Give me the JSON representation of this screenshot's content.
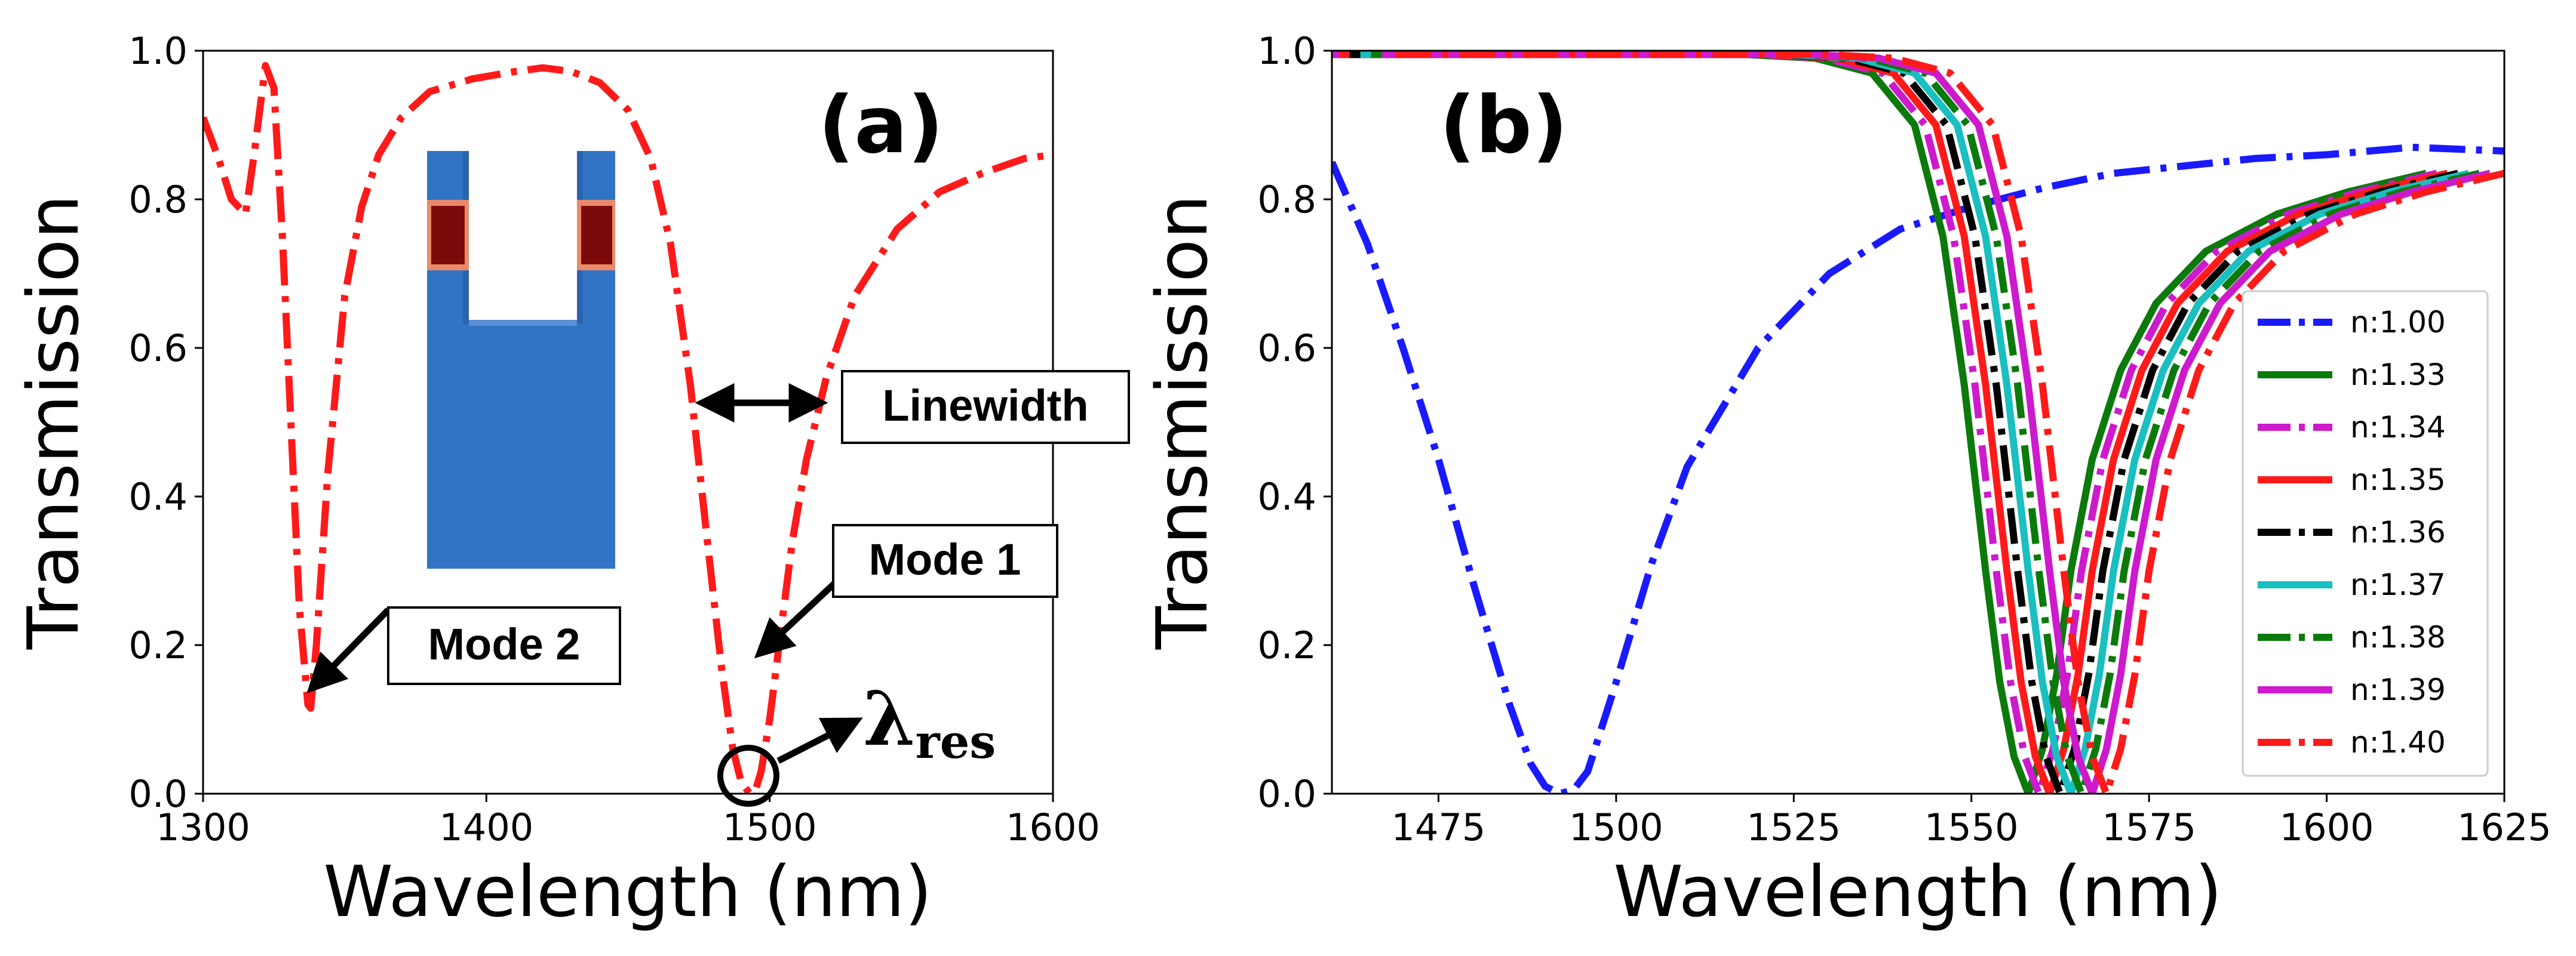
{
  "chart_data": [
    {
      "type": "line",
      "panel": "(a)",
      "xlabel": "Wavelength (nm)",
      "ylabel": "Transmission",
      "xlim": [
        1300,
        1600
      ],
      "ylim": [
        0.0,
        1.0
      ],
      "xticks": [
        1300,
        1400,
        1500,
        1600
      ],
      "yticks": [
        0.0,
        0.2,
        0.4,
        0.6,
        0.8,
        1.0
      ],
      "xtick_labels": [
        "1300",
        "1400",
        "1500",
        "1600"
      ],
      "ytick_labels": [
        "0.0",
        "0.2",
        "0.4",
        "0.6",
        "0.8",
        "1.0"
      ],
      "series": [
        {
          "name": "transmission",
          "color": "#ff1a1a",
          "style": "dashdot",
          "x": [
            1300,
            1305,
            1310,
            1315,
            1318,
            1322,
            1325,
            1328,
            1331,
            1334,
            1337,
            1338,
            1340,
            1344,
            1350,
            1356,
            1362,
            1370,
            1380,
            1395,
            1410,
            1420,
            1430,
            1440,
            1450,
            1458,
            1465,
            1472,
            1478,
            1483,
            1487,
            1490,
            1493,
            1495,
            1497,
            1500,
            1504,
            1508,
            1513,
            1520,
            1530,
            1545,
            1560,
            1575,
            1590,
            1600
          ],
          "values": [
            0.91,
            0.86,
            0.8,
            0.78,
            0.86,
            0.98,
            0.95,
            0.75,
            0.5,
            0.25,
            0.12,
            0.115,
            0.2,
            0.43,
            0.67,
            0.79,
            0.86,
            0.91,
            0.945,
            0.962,
            0.972,
            0.977,
            0.972,
            0.957,
            0.92,
            0.855,
            0.74,
            0.55,
            0.34,
            0.17,
            0.06,
            0.015,
            0.0,
            0.005,
            0.03,
            0.1,
            0.22,
            0.34,
            0.45,
            0.56,
            0.67,
            0.76,
            0.81,
            0.835,
            0.855,
            0.86
          ]
        }
      ],
      "annotations": {
        "linewidth": "Linewidth",
        "mode1": "Mode 1",
        "mode2": "Mode 2",
        "lambda_symbol": "λ",
        "lambda_subscript": "res"
      }
    },
    {
      "type": "line",
      "panel": "(b)",
      "xlabel": "Wavelength (nm)",
      "ylabel": "Transmission",
      "xlim": [
        1460,
        1625
      ],
      "ylim": [
        0.0,
        1.0
      ],
      "xticks": [
        1475,
        1500,
        1525,
        1550,
        1575,
        1600,
        1625
      ],
      "yticks": [
        0.0,
        0.2,
        0.4,
        0.6,
        0.8,
        1.0
      ],
      "xtick_labels": [
        "1475",
        "1500",
        "1525",
        "1550",
        "1575",
        "1600",
        "1625"
      ],
      "ytick_labels": [
        "0.0",
        "0.2",
        "0.4",
        "0.6",
        "0.8",
        "1.0"
      ],
      "legend_position": "center-right",
      "series": [
        {
          "name": "n:1.00",
          "color": "#1a1aff",
          "style": "dashdot",
          "x": [
            1460,
            1465,
            1470,
            1475,
            1480,
            1485,
            1488,
            1490,
            1492,
            1494,
            1496,
            1500,
            1505,
            1510,
            1520,
            1530,
            1540,
            1550,
            1560,
            1570,
            1580,
            1590,
            1600,
            1612,
            1625
          ],
          "values": [
            0.85,
            0.74,
            0.6,
            0.45,
            0.28,
            0.12,
            0.04,
            0.01,
            0.0,
            0.005,
            0.03,
            0.15,
            0.31,
            0.44,
            0.6,
            0.7,
            0.76,
            0.79,
            0.815,
            0.835,
            0.845,
            0.855,
            0.86,
            0.87,
            0.865
          ]
        },
        {
          "name": "n:1.33",
          "color": "#0b7a0b",
          "style": "solid",
          "dip": 1558.0,
          "values": []
        },
        {
          "name": "n:1.34",
          "color": "#cc1acc",
          "style": "dashdot",
          "dip": 1559.5,
          "values": []
        },
        {
          "name": "n:1.35",
          "color": "#ff1a1a",
          "style": "solid",
          "dip": 1561.0,
          "values": []
        },
        {
          "name": "n:1.36",
          "color": "#000000",
          "style": "dashdot",
          "dip": 1562.5,
          "values": []
        },
        {
          "name": "n:1.37",
          "color": "#1abfbf",
          "style": "solid",
          "dip": 1564.0,
          "values": []
        },
        {
          "name": "n:1.38",
          "color": "#0b7a0b",
          "style": "dashdot",
          "dip": 1565.5,
          "values": []
        },
        {
          "name": "n:1.39",
          "color": "#cc1acc",
          "style": "solid",
          "dip": 1567.0,
          "values": []
        },
        {
          "name": "n:1.40",
          "color": "#ff1a1a",
          "style": "dashdot",
          "dip": 1569.0,
          "values": []
        }
      ],
      "dip_profile": {
        "x_offsets": [
          -100,
          -60,
          -40,
          -30,
          -22,
          -16,
          -12,
          -9,
          -6,
          -4,
          -2,
          0,
          2,
          4,
          6,
          9,
          13,
          18,
          25,
          35,
          45,
          56
        ],
        "values": [
          0.995,
          0.995,
          0.995,
          0.99,
          0.97,
          0.9,
          0.75,
          0.55,
          0.3,
          0.15,
          0.05,
          0.0,
          0.06,
          0.16,
          0.3,
          0.45,
          0.57,
          0.66,
          0.73,
          0.78,
          0.81,
          0.835
        ]
      }
    }
  ]
}
